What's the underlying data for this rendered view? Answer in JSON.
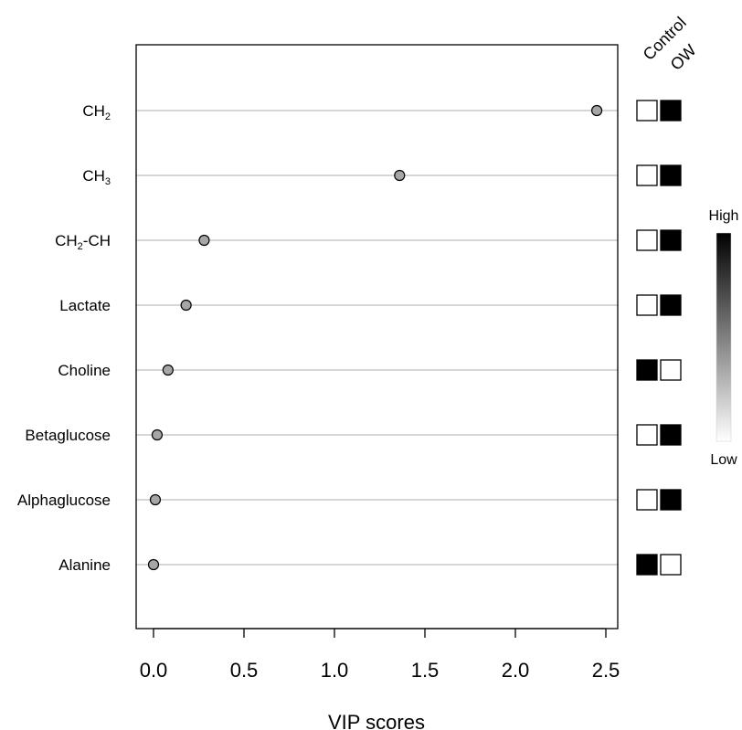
{
  "chart_data": {
    "type": "scatter",
    "xlabel": "VIP scores",
    "xlim": [
      -0.1,
      2.55
    ],
    "x_ticks": [
      "0.0",
      "0.5",
      "1.0",
      "1.5",
      "2.0",
      "2.5"
    ],
    "x_tick_values": [
      0,
      0.5,
      1.0,
      1.5,
      2.0,
      2.5
    ],
    "grid": "horizontal lines at each feature",
    "point_color": "#a6a6a6",
    "features": [
      {
        "label": "CH",
        "sub": "2",
        "suffix": "",
        "vip": 2.45,
        "control": "low",
        "ow": "high"
      },
      {
        "label": "CH",
        "sub": "3",
        "suffix": "",
        "vip": 1.36,
        "control": "low",
        "ow": "high"
      },
      {
        "label": "CH",
        "sub": "2",
        "suffix": "-CH",
        "vip": 0.28,
        "control": "low",
        "ow": "high"
      },
      {
        "label": "Lactate",
        "sub": "",
        "suffix": "",
        "vip": 0.18,
        "control": "low",
        "ow": "high"
      },
      {
        "label": "Choline",
        "sub": "",
        "suffix": "",
        "vip": 0.08,
        "control": "high",
        "ow": "low"
      },
      {
        "label": "Betaglucose",
        "sub": "",
        "suffix": "",
        "vip": 0.02,
        "control": "low",
        "ow": "high"
      },
      {
        "label": "Alphaglucose",
        "sub": "",
        "suffix": "",
        "vip": 0.01,
        "control": "low",
        "ow": "high"
      },
      {
        "label": "Alanine",
        "sub": "",
        "suffix": "",
        "vip": 0.0,
        "control": "high",
        "ow": "low"
      }
    ],
    "group_headers": [
      "Control",
      "OW"
    ],
    "colorbar": {
      "high_label": "High",
      "low_label": "Low",
      "high_color": "#000000",
      "low_color": "#ffffff"
    }
  }
}
